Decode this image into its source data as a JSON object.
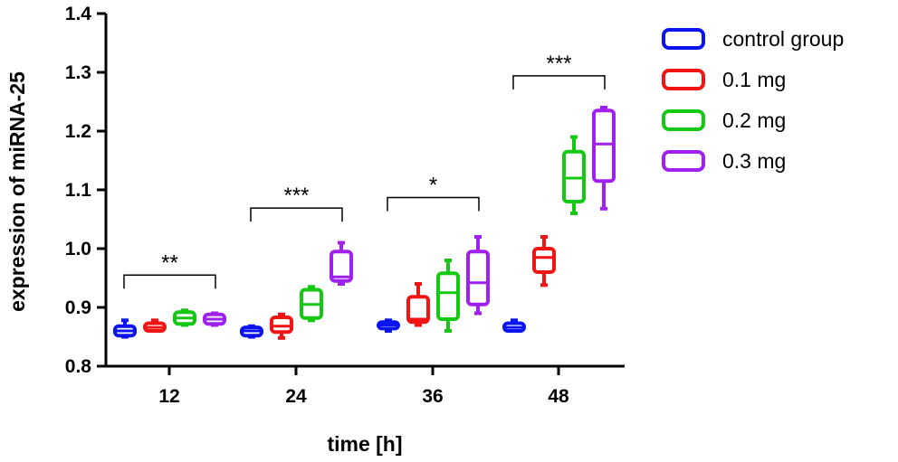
{
  "chart_data": {
    "type": "box",
    "title": "",
    "xlabel": "time [h]",
    "ylabel": "expression of miRNA-25",
    "ylim": [
      0.8,
      1.4
    ],
    "yticks": [
      "0.8",
      "0.9",
      "1.0",
      "1.1",
      "1.2",
      "1.3",
      "1.4"
    ],
    "categories": [
      "12",
      "24",
      "36",
      "48"
    ],
    "legend_position": "top-right",
    "series": [
      {
        "name": "control group",
        "color": "#0a14f0",
        "boxes": [
          {
            "min": 0.85,
            "q1": 0.852,
            "median": 0.86,
            "q3": 0.868,
            "max": 0.878
          },
          {
            "min": 0.85,
            "q1": 0.852,
            "median": 0.86,
            "q3": 0.866,
            "max": 0.868
          },
          {
            "min": 0.86,
            "q1": 0.864,
            "median": 0.87,
            "q3": 0.875,
            "max": 0.878
          },
          {
            "min": 0.86,
            "q1": 0.86,
            "median": 0.866,
            "q3": 0.873,
            "max": 0.878
          }
        ]
      },
      {
        "name": "0.1 mg",
        "color": "#f01414",
        "boxes": [
          {
            "min": 0.86,
            "q1": 0.86,
            "median": 0.866,
            "q3": 0.873,
            "max": 0.878
          },
          {
            "min": 0.848,
            "q1": 0.858,
            "median": 0.868,
            "q3": 0.883,
            "max": 0.888
          },
          {
            "min": 0.87,
            "q1": 0.875,
            "median": 0.88,
            "q3": 0.918,
            "max": 0.94
          },
          {
            "min": 0.938,
            "q1": 0.96,
            "median": 0.985,
            "q3": 1.0,
            "max": 1.02
          }
        ]
      },
      {
        "name": "0.2 mg",
        "color": "#14c814",
        "boxes": [
          {
            "min": 0.87,
            "q1": 0.872,
            "median": 0.882,
            "q3": 0.892,
            "max": 0.895
          },
          {
            "min": 0.878,
            "q1": 0.882,
            "median": 0.905,
            "q3": 0.93,
            "max": 0.935
          },
          {
            "min": 0.86,
            "q1": 0.88,
            "median": 0.925,
            "q3": 0.958,
            "max": 0.98
          },
          {
            "min": 1.06,
            "q1": 1.08,
            "median": 1.12,
            "q3": 1.165,
            "max": 1.19
          }
        ]
      },
      {
        "name": "0.3 mg",
        "color": "#a020f0",
        "boxes": [
          {
            "min": 0.87,
            "q1": 0.872,
            "median": 0.88,
            "q3": 0.888,
            "max": 0.89
          },
          {
            "min": 0.94,
            "q1": 0.945,
            "median": 0.952,
            "q3": 0.995,
            "max": 1.01
          },
          {
            "min": 0.89,
            "q1": 0.905,
            "median": 0.942,
            "q3": 0.995,
            "max": 1.02
          },
          {
            "min": 1.068,
            "q1": 1.115,
            "median": 1.178,
            "q3": 1.235,
            "max": 1.24
          }
        ]
      }
    ],
    "annotations": [
      {
        "group": "12",
        "text": "**",
        "y": 0.955
      },
      {
        "group": "24",
        "text": "***",
        "y": 1.069
      },
      {
        "group": "36",
        "text": "*",
        "y": 1.087
      },
      {
        "group": "48",
        "text": "***",
        "y": 1.294
      }
    ]
  }
}
